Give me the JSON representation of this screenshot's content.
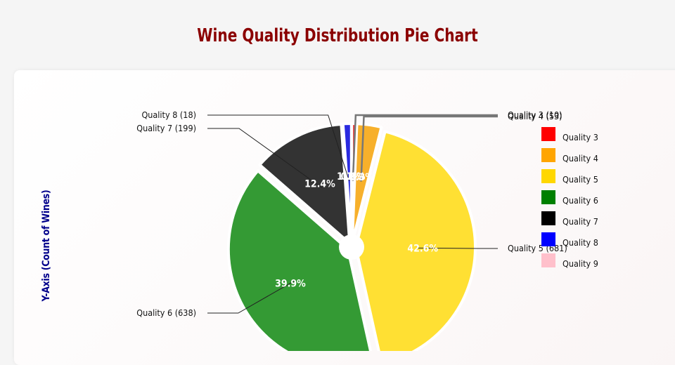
{
  "chart_data": {
    "type": "pie",
    "title": "Wine Quality Distribution Pie Chart",
    "ylabel": "Y-Axis (Count of Wines)",
    "categories": [
      "Quality 3",
      "Quality 4",
      "Quality 5",
      "Quality 6",
      "Quality 7",
      "Quality 8",
      "Quality 9"
    ],
    "values": [
      10,
      53,
      681,
      638,
      199,
      18,
      0
    ],
    "percent_labels": [
      "0.6%",
      "3.3%",
      "42.6%",
      "39.9%",
      "12.4%",
      "1.1%",
      ""
    ],
    "callout_labels": [
      "Quality 3 (10)",
      "Quality 4 (53)",
      "Quality 5 (681)",
      "Quality 6 (638)",
      "Quality 7 (199)",
      "Quality 8 (18)",
      ""
    ],
    "colors": [
      "#ff0000",
      "#ffa500",
      "#ffd700",
      "#008000",
      "#000000",
      "#0000ff",
      "#ffc0cb"
    ],
    "legend": {
      "placement": "right",
      "entries": [
        "Quality 3",
        "Quality 4",
        "Quality 5",
        "Quality 6",
        "Quality 7",
        "Quality 8",
        "Quality 9"
      ]
    },
    "donut_hole": true
  }
}
